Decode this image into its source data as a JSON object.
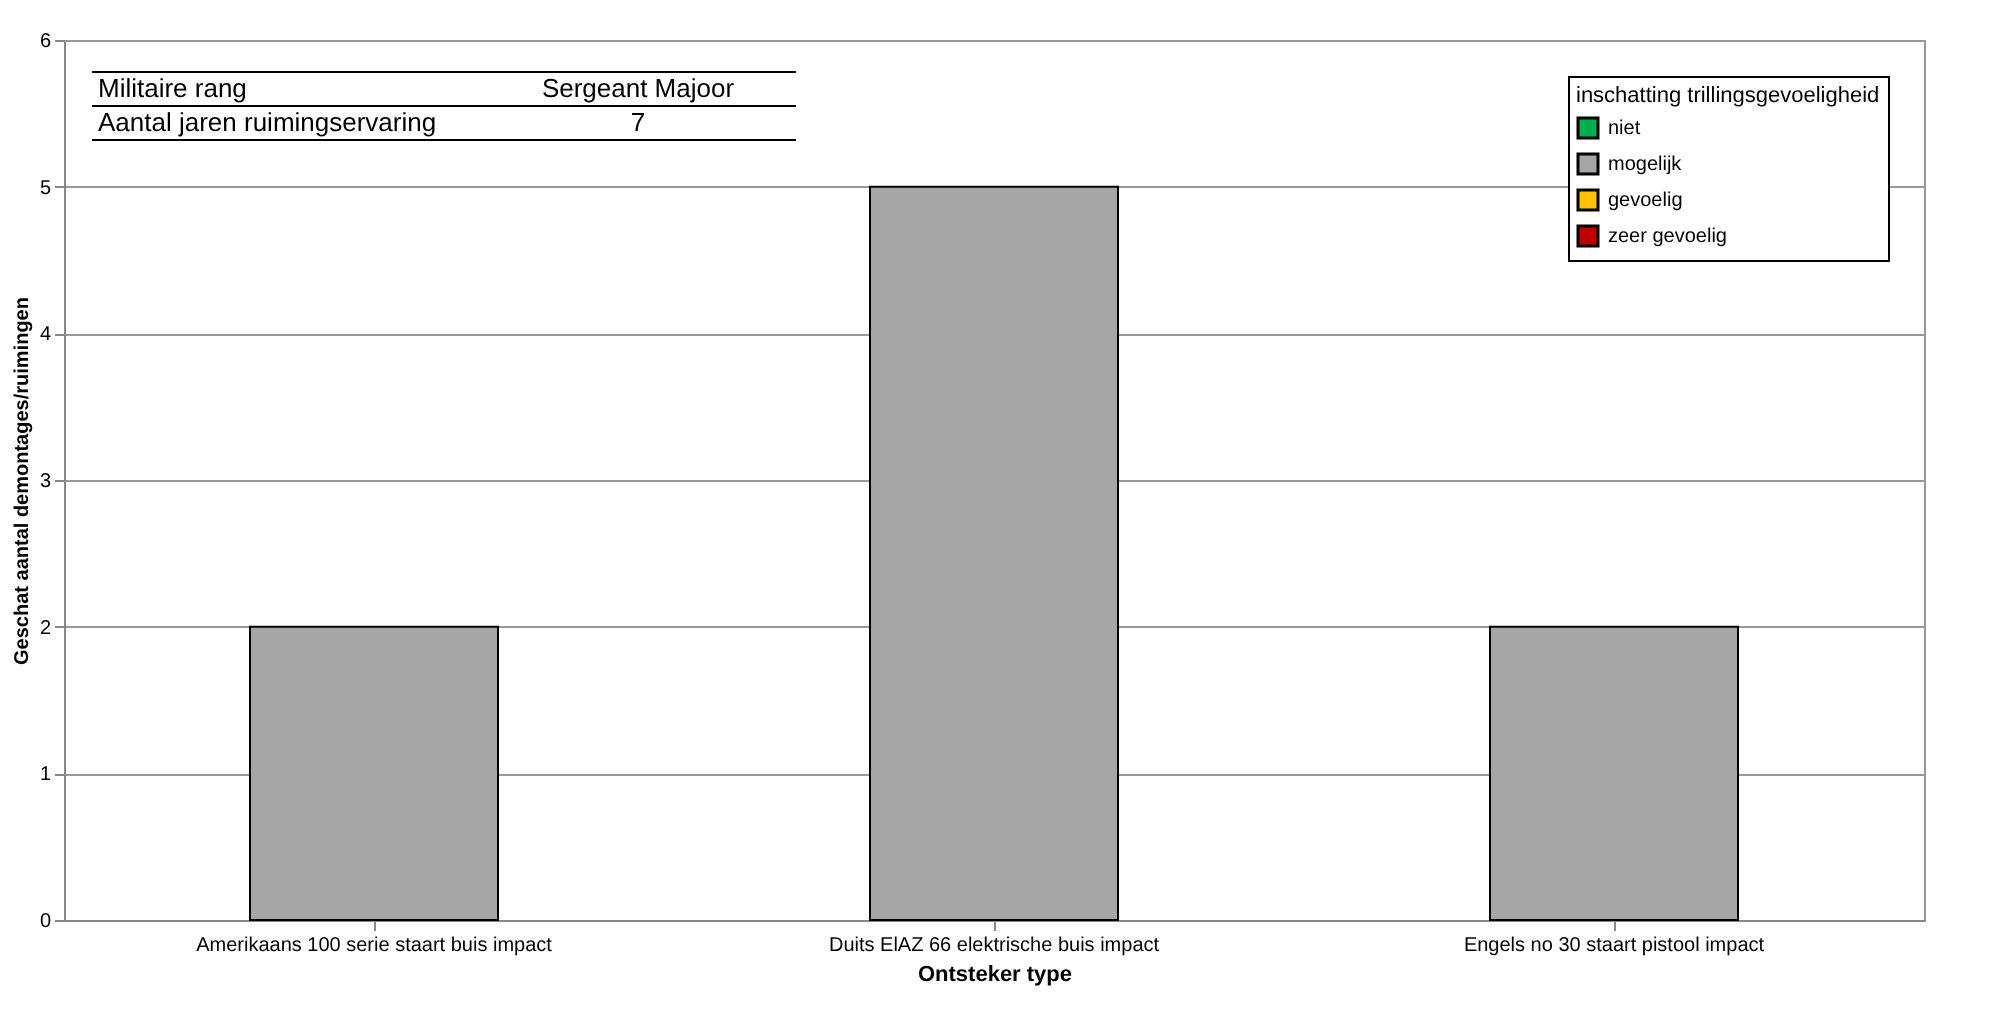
{
  "chart_data": {
    "type": "bar",
    "xlabel": "Ontsteker type",
    "ylabel": "Geschat aantal demontages/ruimingen",
    "categories": [
      "Amerikaans 100 serie staart buis impact",
      "Duits ElAZ 66 elektrische buis impact",
      "Engels no 30 staart pistool impact"
    ],
    "series": [
      {
        "name": "niet",
        "color": "#00b050",
        "values": [
          null,
          null,
          null
        ]
      },
      {
        "name": "mogelijk",
        "color": "#a6a6a6",
        "values": [
          2,
          5,
          2
        ]
      },
      {
        "name": "gevoelig",
        "color": "#ffc000",
        "values": [
          null,
          null,
          null
        ]
      },
      {
        "name": "zeer gevoelig",
        "color": "#c00000",
        "values": [
          null,
          null,
          null
        ]
      }
    ],
    "legend_title": "inschatting trillingsgevoeligheid",
    "legend": "top right",
    "ylim": [
      0,
      6
    ],
    "yticks": [
      0,
      1,
      2,
      3,
      4,
      5,
      6
    ],
    "grid": "y",
    "annotations": [
      "Militaire rang",
      "Sergeant Majoor",
      "Aantal jaren ruimingservaring",
      "7"
    ]
  }
}
